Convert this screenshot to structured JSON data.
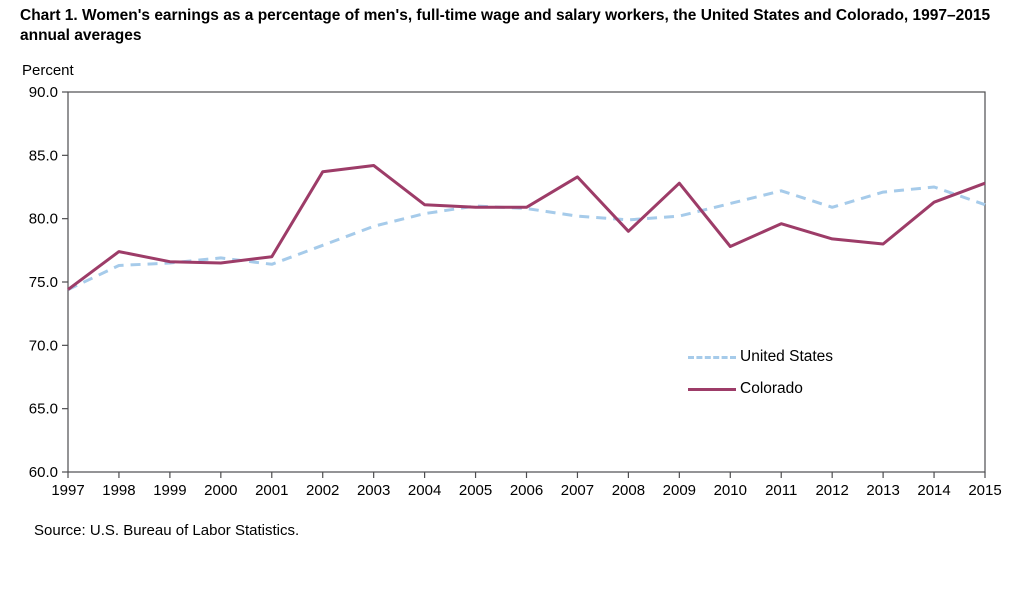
{
  "title": "Chart 1. Women's earnings as a percentage of men's, full-time wage and salary workers, the United States and Colorado, 1997–2015 annual averages",
  "y_axis_title": "Percent",
  "source": "Source:  U.S. Bureau of Labor Statistics.",
  "colors": {
    "united_states_line": "#a6cbea",
    "colorado_line": "#9d3c68",
    "axis": "#4d4d4f"
  },
  "chart_data": {
    "type": "line",
    "x": [
      1997,
      1998,
      1999,
      2000,
      2001,
      2002,
      2003,
      2004,
      2005,
      2006,
      2007,
      2008,
      2009,
      2010,
      2011,
      2012,
      2013,
      2014,
      2015
    ],
    "series": [
      {
        "name": "United States",
        "style": "dashed",
        "color": "#a6cbea",
        "values": [
          74.4,
          76.3,
          76.5,
          76.9,
          76.4,
          77.9,
          79.4,
          80.4,
          81.0,
          80.8,
          80.2,
          79.9,
          80.2,
          81.2,
          82.2,
          80.9,
          82.1,
          82.5,
          81.1
        ]
      },
      {
        "name": "Colorado",
        "style": "solid",
        "color": "#9d3c68",
        "values": [
          74.4,
          77.4,
          76.6,
          76.5,
          77.0,
          83.7,
          84.2,
          81.1,
          80.9,
          80.9,
          83.3,
          79.0,
          82.8,
          77.8,
          79.6,
          78.4,
          78.0,
          81.3,
          82.8
        ]
      }
    ],
    "ylim": [
      60.0,
      90.0
    ],
    "ytick_step": 5.0,
    "ytick_format_decimals": 1,
    "grid": false,
    "legend_position": "inside-right",
    "title": "Chart 1. Women's earnings as a percentage of men's, full-time wage and salary workers, the United States and Colorado, 1997–2015 annual averages",
    "xlabel": "",
    "ylabel": "Percent"
  }
}
